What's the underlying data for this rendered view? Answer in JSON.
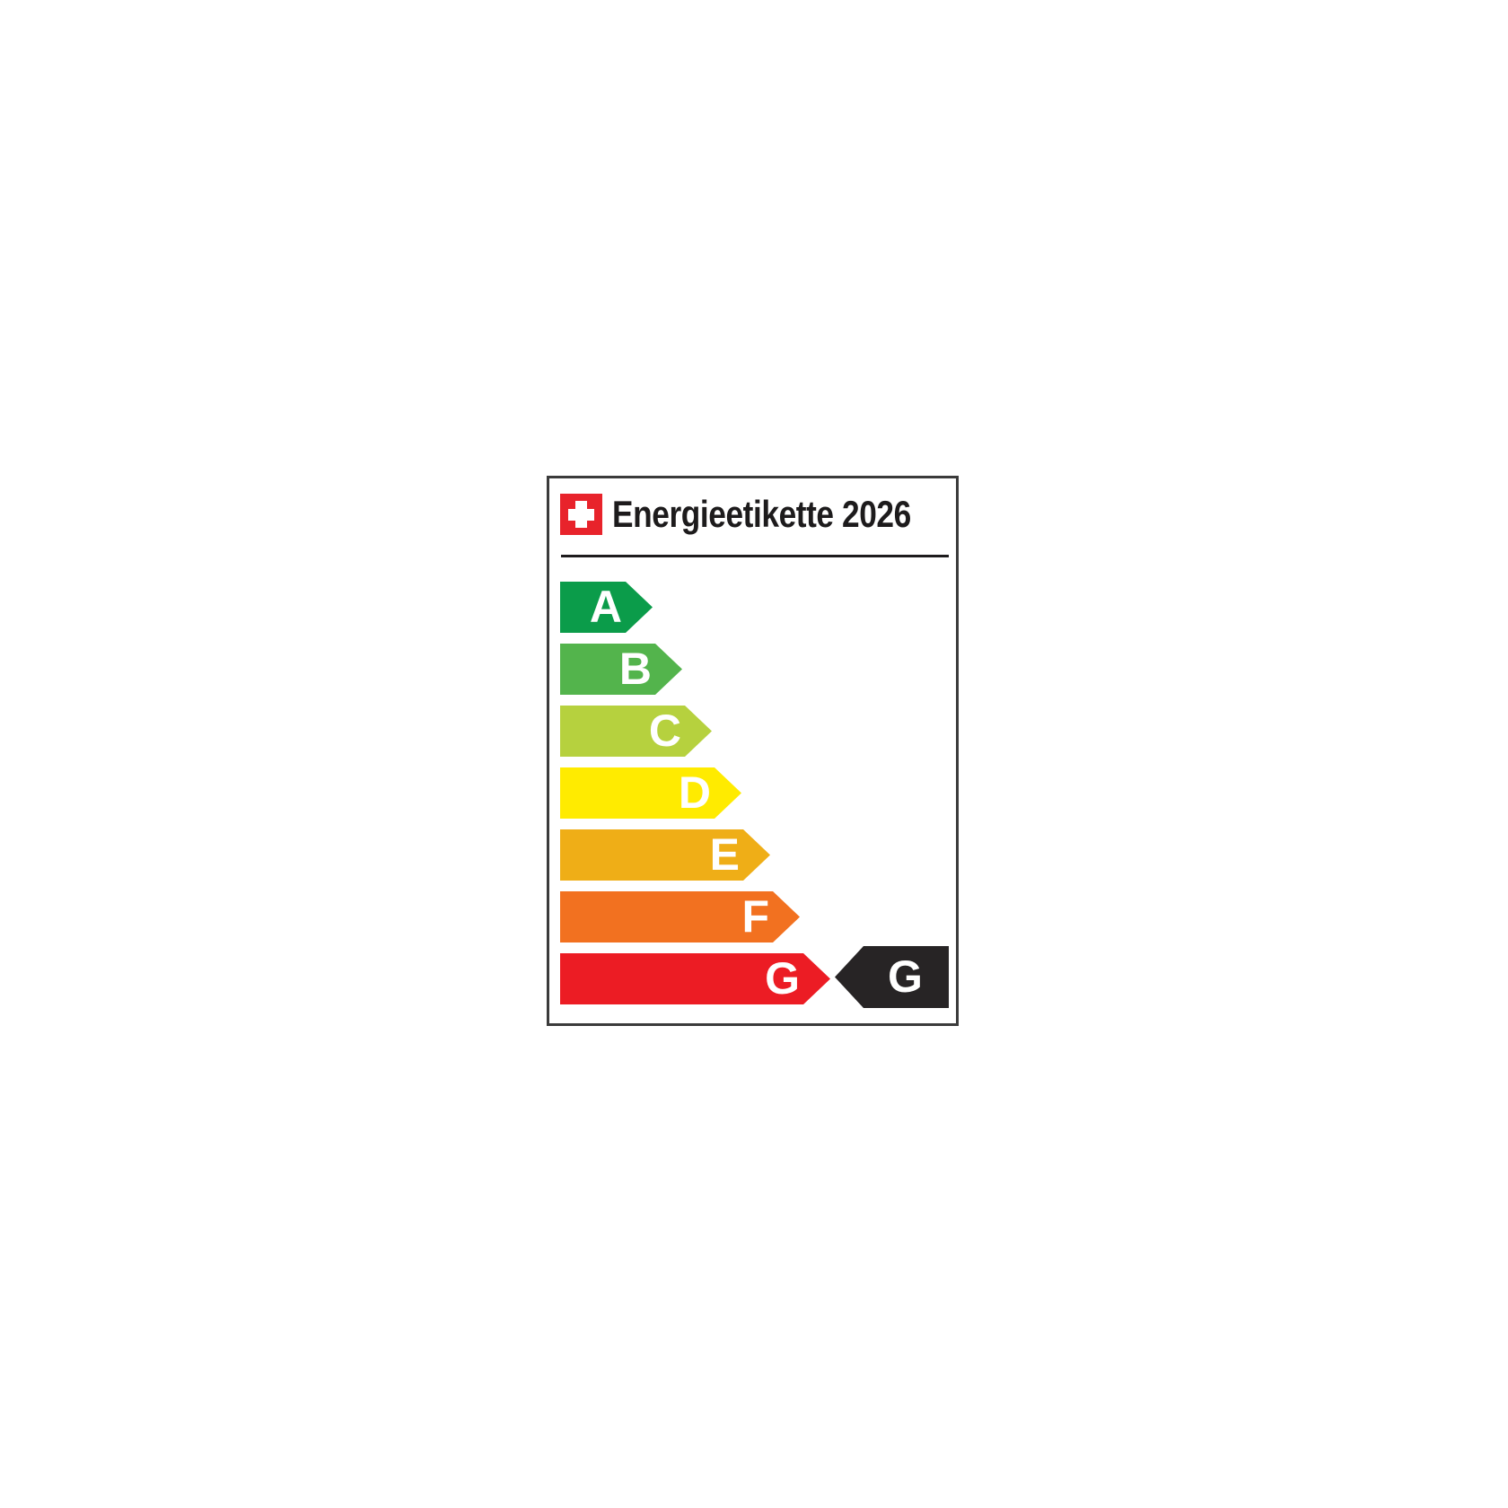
{
  "label": {
    "title": "Energieetikette 2026",
    "current_rating": "G",
    "ratings": [
      {
        "grade": "A",
        "color": "#0B9C4A"
      },
      {
        "grade": "B",
        "color": "#53B44C"
      },
      {
        "grade": "C",
        "color": "#B6D13E"
      },
      {
        "grade": "D",
        "color": "#FFEB00"
      },
      {
        "grade": "E",
        "color": "#EFAE17"
      },
      {
        "grade": "F",
        "color": "#F27120"
      },
      {
        "grade": "G",
        "color": "#EC1C24"
      }
    ],
    "colors": {
      "flag_red": "#E8232B",
      "indicator_black": "#272425",
      "frame_border": "#3B3B3B",
      "title_text": "#1D1B1C",
      "letter_text": "#FFFFFF"
    }
  }
}
